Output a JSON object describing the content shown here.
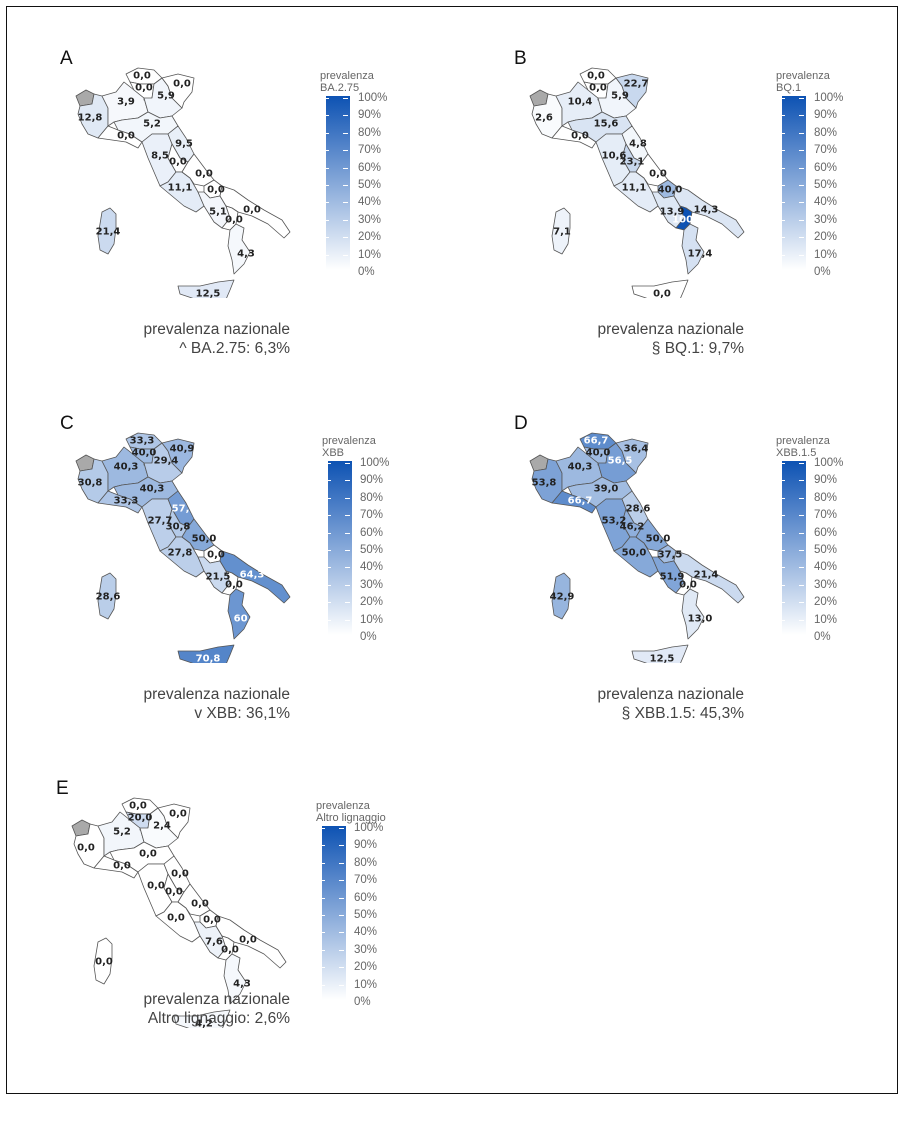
{
  "legend": {
    "title_prefix": "prevalenza",
    "ticks": [
      "100%",
      "90%",
      "80%",
      "70%",
      "60%",
      "50%",
      "40%",
      "30%",
      "20%",
      "10%",
      "0%"
    ],
    "low_color": "#ffffff",
    "high_color": "#0d52b3",
    "excluded_color": "#a9a9a9"
  },
  "caption_prefix": "prevalenza nazionale",
  "panels": [
    {
      "letter": "A",
      "variant": "BA.2.75",
      "national": "^ BA.2.75: 6,3%",
      "regions": {
        "bolzano": {
          "label": "0,0",
          "value": 0
        },
        "trento": {
          "label": "0,0",
          "value": 0
        },
        "lombardia": {
          "label": "3,9",
          "value": 3.9
        },
        "veneto": {
          "label": "5,9",
          "value": 5.9
        },
        "friuli": {
          "label": "0,0",
          "value": 0
        },
        "piemonte": {
          "label": "12,8",
          "value": 12.8
        },
        "liguria": {
          "label": "0,0",
          "value": 0
        },
        "emilia": {
          "label": "5,2",
          "value": 5.2
        },
        "toscana": {
          "label": "8,5",
          "value": 8.5
        },
        "marche": {
          "label": "9,5",
          "value": 9.5
        },
        "umbria": {
          "label": "0,0",
          "value": 0
        },
        "lazio": {
          "label": "11,1",
          "value": 11.1
        },
        "abruzzo": {
          "label": "0,0",
          "value": 0
        },
        "molise": {
          "label": "0,0",
          "value": 0
        },
        "campania": {
          "label": "5,1",
          "value": 5.1
        },
        "puglia": {
          "label": "0,0",
          "value": 0
        },
        "basilicata": {
          "label": "0,0",
          "value": 0
        },
        "calabria": {
          "label": "4,3",
          "value": 4.3
        },
        "sicilia": {
          "label": "12,5",
          "value": 12.5
        },
        "sardegna": {
          "label": "21,4",
          "value": 21.4
        }
      }
    },
    {
      "letter": "B",
      "variant": "BQ.1",
      "national": "§ BQ.1: 9,7%",
      "regions": {
        "bolzano": {
          "label": "0,0",
          "value": 0
        },
        "trento": {
          "label": "0,0",
          "value": 0
        },
        "lombardia": {
          "label": "10,4",
          "value": 10.4
        },
        "veneto": {
          "label": "5,9",
          "value": 5.9
        },
        "friuli": {
          "label": "22,7",
          "value": 22.7
        },
        "piemonte": {
          "label": "2,6",
          "value": 2.6
        },
        "liguria": {
          "label": "0,0",
          "value": 0
        },
        "emilia": {
          "label": "15,6",
          "value": 15.6
        },
        "toscana": {
          "label": "10,6",
          "value": 10.6
        },
        "marche": {
          "label": "4,8",
          "value": 4.8
        },
        "umbria": {
          "label": "23,1",
          "value": 23.1
        },
        "lazio": {
          "label": "11,1",
          "value": 11.1
        },
        "abruzzo": {
          "label": "0,0",
          "value": 0
        },
        "molise": {
          "label": "40,0",
          "value": 40.0
        },
        "campania": {
          "label": "13,9",
          "value": 13.9
        },
        "puglia": {
          "label": "14,3",
          "value": 14.3
        },
        "basilicata": {
          "label": "100,0",
          "value": 100.0
        },
        "calabria": {
          "label": "17,4",
          "value": 17.4
        },
        "sicilia": {
          "label": "0,0",
          "value": 0
        },
        "sardegna": {
          "label": "7,1",
          "value": 7.1
        }
      }
    },
    {
      "letter": "C",
      "variant": "XBB",
      "national": "v XBB: 36,1%",
      "regions": {
        "bolzano": {
          "label": "33,3",
          "value": 33.3
        },
        "trento": {
          "label": "40,0",
          "value": 40.0
        },
        "lombardia": {
          "label": "40,3",
          "value": 40.3
        },
        "veneto": {
          "label": "29,4",
          "value": 29.4
        },
        "friuli": {
          "label": "40,9",
          "value": 40.9
        },
        "piemonte": {
          "label": "30,8",
          "value": 30.8
        },
        "liguria": {
          "label": "33,3",
          "value": 33.3
        },
        "emilia": {
          "label": "40,3",
          "value": 40.3
        },
        "toscana": {
          "label": "27,7",
          "value": 27.7
        },
        "marche": {
          "label": "57,1",
          "value": 57.1
        },
        "umbria": {
          "label": "30,8",
          "value": 30.8
        },
        "lazio": {
          "label": "27,8",
          "value": 27.8
        },
        "abruzzo": {
          "label": "50,0",
          "value": 50.0
        },
        "molise": {
          "label": "0,0",
          "value": 0
        },
        "campania": {
          "label": "21,5",
          "value": 21.5
        },
        "puglia": {
          "label": "64,3",
          "value": 64.3
        },
        "basilicata": {
          "label": "0,0",
          "value": 0
        },
        "calabria": {
          "label": "60,9",
          "value": 60.9
        },
        "sicilia": {
          "label": "70,8",
          "value": 70.8
        },
        "sardegna": {
          "label": "28,6",
          "value": 28.6
        }
      }
    },
    {
      "letter": "D",
      "variant": "XBB.1.5",
      "national": "§ XBB.1.5: 45,3%",
      "regions": {
        "bolzano": {
          "label": "66,7",
          "value": 66.7
        },
        "trento": {
          "label": "40,0",
          "value": 40.0
        },
        "lombardia": {
          "label": "40,3",
          "value": 40.3
        },
        "veneto": {
          "label": "56,5",
          "value": 56.5
        },
        "friuli": {
          "label": "36,4",
          "value": 36.4
        },
        "piemonte": {
          "label": "53,8",
          "value": 53.8
        },
        "liguria": {
          "label": "66,7",
          "value": 66.7
        },
        "emilia": {
          "label": "39,0",
          "value": 39.0
        },
        "toscana": {
          "label": "53,2",
          "value": 53.2
        },
        "marche": {
          "label": "28,6",
          "value": 28.6
        },
        "umbria": {
          "label": "46,2",
          "value": 46.2
        },
        "lazio": {
          "label": "50,0",
          "value": 50.0
        },
        "abruzzo": {
          "label": "50,0",
          "value": 50.0
        },
        "molise": {
          "label": "37,5",
          "value": 37.5
        },
        "campania": {
          "label": "51,9",
          "value": 51.9
        },
        "puglia": {
          "label": "21,4",
          "value": 21.4
        },
        "basilicata": {
          "label": "0,0",
          "value": 0
        },
        "calabria": {
          "label": "13,0",
          "value": 13.0
        },
        "sicilia": {
          "label": "12,5",
          "value": 12.5
        },
        "sardegna": {
          "label": "42,9",
          "value": 42.9
        }
      }
    },
    {
      "letter": "E",
      "variant": "Altro lignaggio",
      "national": "Altro lignaggio: 2,6%",
      "regions": {
        "bolzano": {
          "label": "0,0",
          "value": 0
        },
        "trento": {
          "label": "20,0",
          "value": 20.0
        },
        "lombardia": {
          "label": "5,2",
          "value": 5.2
        },
        "veneto": {
          "label": "2,4",
          "value": 2.4
        },
        "friuli": {
          "label": "0,0",
          "value": 0
        },
        "piemonte": {
          "label": "0,0",
          "value": 0
        },
        "liguria": {
          "label": "0,0",
          "value": 0
        },
        "emilia": {
          "label": "0,0",
          "value": 0
        },
        "toscana": {
          "label": "0,0",
          "value": 0
        },
        "marche": {
          "label": "0,0",
          "value": 0
        },
        "umbria": {
          "label": "0,0",
          "value": 0
        },
        "lazio": {
          "label": "0,0",
          "value": 0
        },
        "abruzzo": {
          "label": "0,0",
          "value": 0
        },
        "molise": {
          "label": "0,0",
          "value": 0
        },
        "campania": {
          "label": "7,6",
          "value": 7.6
        },
        "puglia": {
          "label": "0,0",
          "value": 0
        },
        "basilicata": {
          "label": "0,0",
          "value": 0
        },
        "calabria": {
          "label": "4,3",
          "value": 4.3
        },
        "sicilia": {
          "label": "4,2",
          "value": 4.2
        },
        "sardegna": {
          "label": "0,0",
          "value": 0
        }
      }
    }
  ]
}
